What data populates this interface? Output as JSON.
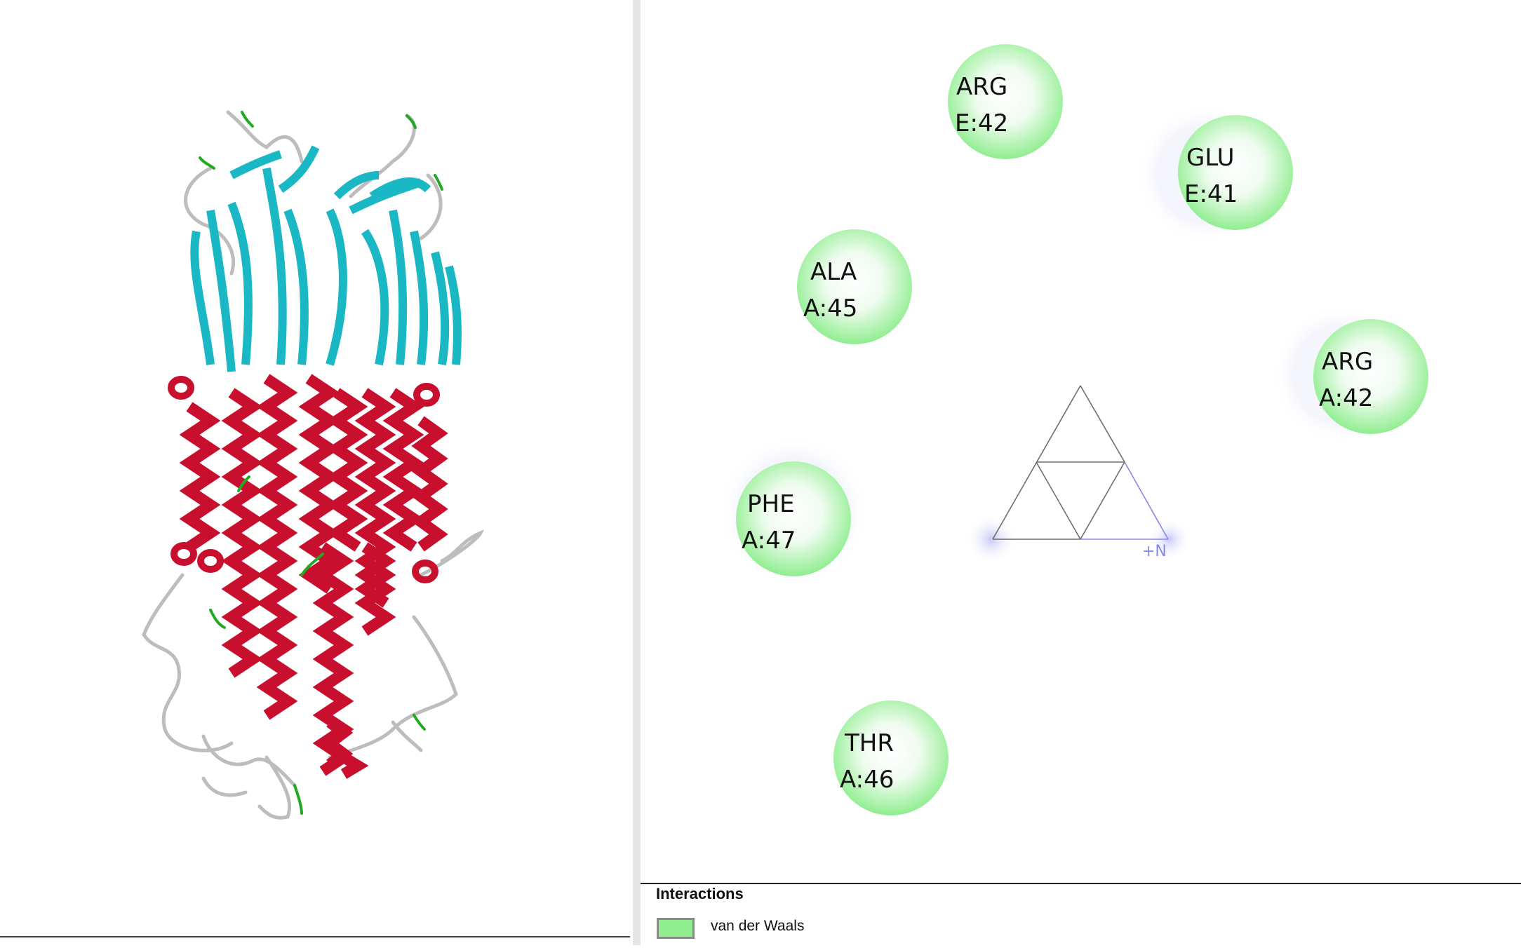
{
  "residues": [
    {
      "name": "ARG",
      "id": "E:42"
    },
    {
      "name": "GLU",
      "id": "E:41"
    },
    {
      "name": "ALA",
      "id": "A:45"
    },
    {
      "name": "ARG",
      "id": "A:42"
    },
    {
      "name": "PHE",
      "id": "A:47"
    },
    {
      "name": "THR",
      "id": "A:46"
    }
  ],
  "ligand": {
    "charge_label": "+N"
  },
  "legend": {
    "title": "Interactions",
    "items": [
      {
        "label": "van der Waals",
        "color": "#90ee90"
      }
    ]
  },
  "colors": {
    "helix": "#c8102e",
    "sheet": "#19b8c4",
    "coil": "#bfbfbf",
    "turn": "#22aa22",
    "residue_fill": "#90ee90",
    "ligand_bond": "#666666",
    "charge": "#8888ee"
  }
}
